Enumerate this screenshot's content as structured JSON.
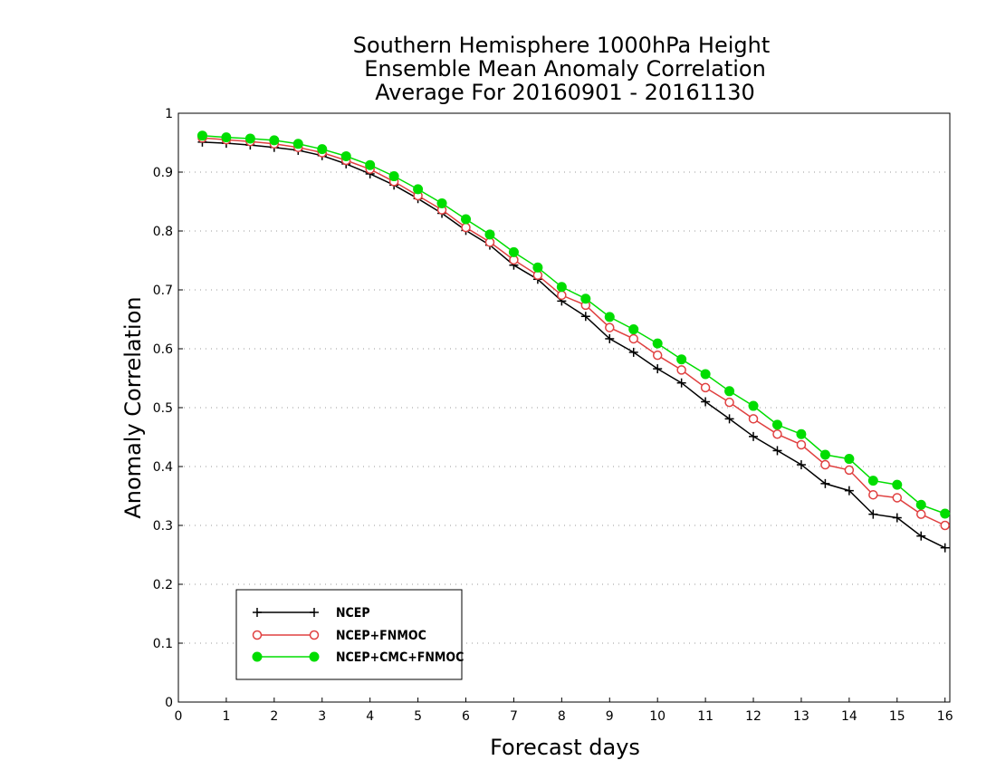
{
  "chart_data": {
    "type": "line",
    "title": [
      "Southern Hemisphere 1000hPa Height",
      "Ensemble Mean Anomaly Correlation",
      "Average For 20160901 - 20161130"
    ],
    "xlabel": "Forecast days",
    "ylabel": "Anomaly Correlation",
    "xlim": [
      0,
      16.1
    ],
    "ylim": [
      0,
      1
    ],
    "xticks": [
      "0",
      "1",
      "2",
      "3",
      "4",
      "5",
      "6",
      "7",
      "8",
      "9",
      "10",
      "11",
      "12",
      "13",
      "14",
      "15",
      "16"
    ],
    "yticks": [
      "0",
      "0.1",
      "0.2",
      "0.3",
      "0.4",
      "0.5",
      "0.6",
      "0.7",
      "0.8",
      "0.9",
      "1"
    ],
    "grid": "dotted horizontal",
    "legend_position": "bottom-left",
    "x": [
      0.5,
      1,
      1.5,
      2,
      2.5,
      3,
      3.5,
      4,
      4.5,
      5,
      5.5,
      6,
      6.5,
      7,
      7.5,
      8,
      8.5,
      9,
      9.5,
      10,
      10.5,
      11,
      11.5,
      12,
      12.5,
      13,
      13.5,
      14,
      14.5,
      15,
      15.5,
      16
    ],
    "series": [
      {
        "name": "NCEP",
        "color": "#000000",
        "marker": "plus",
        "values": [
          0.951,
          0.949,
          0.946,
          0.942,
          0.937,
          0.928,
          0.914,
          0.897,
          0.878,
          0.855,
          0.83,
          0.801,
          0.776,
          0.742,
          0.718,
          0.681,
          0.655,
          0.617,
          0.594,
          0.566,
          0.542,
          0.51,
          0.481,
          0.451,
          0.427,
          0.403,
          0.371,
          0.359,
          0.319,
          0.313,
          0.282,
          0.262
        ]
      },
      {
        "name": "NCEP+FNMOC",
        "color": "#e04040",
        "marker": "open-circle",
        "values": [
          0.958,
          0.955,
          0.952,
          0.948,
          0.942,
          0.933,
          0.92,
          0.905,
          0.884,
          0.86,
          0.836,
          0.806,
          0.781,
          0.751,
          0.725,
          0.691,
          0.674,
          0.636,
          0.617,
          0.589,
          0.564,
          0.534,
          0.509,
          0.481,
          0.455,
          0.437,
          0.403,
          0.394,
          0.352,
          0.347,
          0.319,
          0.3
        ]
      },
      {
        "name": "NCEP+CMC+FNMOC",
        "color": "#00dd00",
        "marker": "filled-circle",
        "values": [
          0.962,
          0.959,
          0.957,
          0.954,
          0.948,
          0.939,
          0.927,
          0.912,
          0.893,
          0.871,
          0.847,
          0.82,
          0.794,
          0.764,
          0.738,
          0.705,
          0.685,
          0.654,
          0.633,
          0.609,
          0.582,
          0.557,
          0.528,
          0.503,
          0.471,
          0.455,
          0.42,
          0.413,
          0.376,
          0.369,
          0.335,
          0.32
        ]
      }
    ]
  }
}
